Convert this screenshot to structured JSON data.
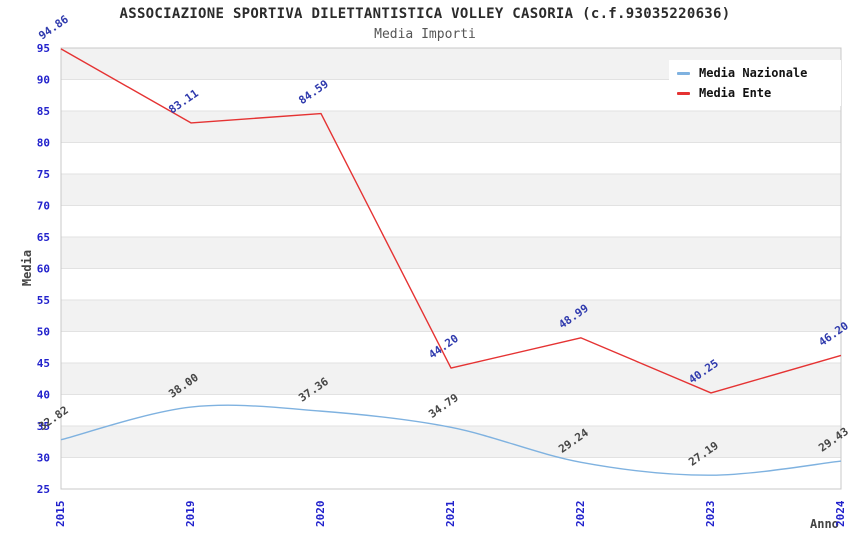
{
  "chart_data": {
    "type": "line",
    "title": "ASSOCIAZIONE SPORTIVA DILETTANTISTICA VOLLEY CASORIA (c.f.93035220636)",
    "subtitle": "Media Importi",
    "xlabel": "Anno",
    "ylabel": "Media",
    "ylim": [
      25,
      95
    ],
    "ytick_step": 5,
    "grid": "horizontal-bands",
    "legend_position": "top-right",
    "categories": [
      "2015",
      "2019",
      "2020",
      "2021",
      "2022",
      "2023",
      "2024"
    ],
    "series": [
      {
        "name": "Media Nazionale",
        "color": "#7fb2e0",
        "label_color": "#464646",
        "smooth": true,
        "values": [
          32.82,
          38.0,
          37.36,
          34.79,
          29.24,
          27.19,
          29.43
        ],
        "labels": [
          "32.82",
          "38.00",
          "37.36",
          "34.79",
          "29.24",
          "27.19",
          "29.43"
        ]
      },
      {
        "name": "Media Ente",
        "color": "#e53333",
        "label_color": "#2f3aad",
        "smooth": false,
        "values": [
          94.86,
          83.11,
          84.59,
          44.2,
          48.99,
          40.25,
          46.2
        ],
        "labels": [
          "94.86",
          "83.11",
          "84.59",
          "44.20",
          "48.99",
          "40.25",
          "46.20"
        ]
      }
    ],
    "colors": {
      "band": "#f2f2f2",
      "grid_line": "#e2e2e2",
      "spine": "#c8c8c8",
      "tick_label": "#2222cc",
      "title": "#2b2b2b",
      "subtitle": "#555555",
      "axis_label": "#444444"
    }
  }
}
